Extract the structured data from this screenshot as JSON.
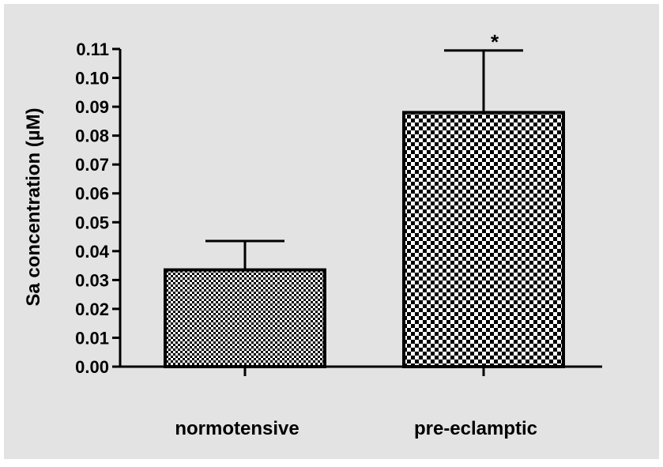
{
  "colors": {
    "panel_background": "#e3e3e3",
    "page_background": "#ffffff",
    "ink": "#000000",
    "bar_fill_pattern_light": "#ffffff",
    "bar_fill_pattern_dark": "#000000"
  },
  "chart_data": {
    "type": "bar",
    "title": "",
    "xlabel": "",
    "ylabel": "Sa concentration (µM)",
    "categories": [
      "normotensive",
      "pre-eclamptic"
    ],
    "values": [
      0.0335,
      0.088
    ],
    "error_upper": [
      0.0435,
      0.1095
    ],
    "annotations": [
      "",
      "*"
    ],
    "ylim": [
      0,
      0.11
    ],
    "yticks": [
      "0.00",
      "0.01",
      "0.02",
      "0.03",
      "0.04",
      "0.05",
      "0.06",
      "0.07",
      "0.08",
      "0.09",
      "0.10",
      "0.11"
    ],
    "fill_patterns": [
      "fine-checker",
      "coarse-checker"
    ],
    "grid": false,
    "legend": "none"
  }
}
